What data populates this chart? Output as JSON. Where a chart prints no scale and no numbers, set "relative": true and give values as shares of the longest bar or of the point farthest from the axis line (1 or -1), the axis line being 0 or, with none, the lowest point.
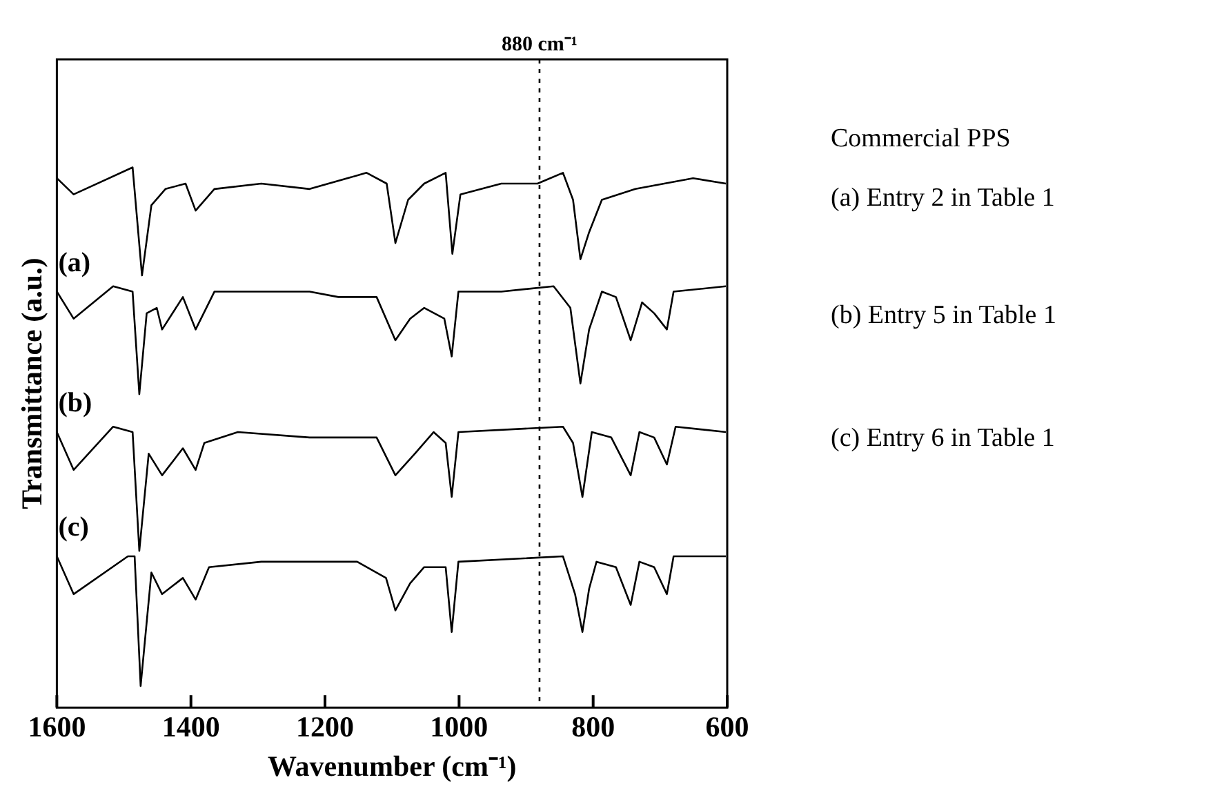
{
  "chart_data": {
    "type": "line",
    "relative": true,
    "xlabel": "Wavenumber (cm⁻¹)",
    "ylabel": "Transmittance (a.u.)",
    "xlim": [
      1600,
      600
    ],
    "xticks": [
      1600,
      1400,
      1200,
      1000,
      800,
      600
    ],
    "grid": false,
    "legend": false,
    "marker": "none",
    "line_style": "solid",
    "tick_labels": "x",
    "ref_lines": [
      {
        "axis": "x",
        "value": 880,
        "label": "880 cm⁻¹",
        "line_style": "dotted",
        "color": "#000000"
      }
    ],
    "annotations": [
      "Commercial PPS",
      "(a) Entry 2 in Table 1",
      "(b) Entry 5 in Table 1",
      "(c) Entry 6 in Table 1"
    ],
    "series": [
      {
        "color": "#000000",
        "x": [
          1600,
          1575,
          1487,
          1473,
          1459,
          1438,
          1408,
          1393,
          1365,
          1295,
          1223,
          1138,
          1108,
          1095,
          1076,
          1052,
          1020,
          1010,
          998,
          937,
          883,
          845,
          830,
          819,
          806,
          787,
          737,
          651,
          602
        ],
        "values": [
          0.98,
          0.95,
          1.0,
          0.8,
          0.93,
          0.96,
          0.97,
          0.92,
          0.96,
          0.97,
          0.96,
          0.99,
          0.97,
          0.86,
          0.94,
          0.97,
          0.99,
          0.84,
          0.95,
          0.97,
          0.97,
          0.99,
          0.94,
          0.83,
          0.88,
          0.94,
          0.96,
          0.98,
          0.97
        ]
      },
      {
        "name": "(a)",
        "color": "#000000",
        "x": [
          1600,
          1575,
          1516,
          1487,
          1477,
          1466,
          1451,
          1443,
          1412,
          1393,
          1365,
          1223,
          1180,
          1123,
          1095,
          1073,
          1052,
          1022,
          1011,
          1001,
          937,
          859,
          834,
          819,
          806,
          787,
          766,
          744,
          727,
          709,
          690,
          680,
          602
        ],
        "values": [
          0.77,
          0.72,
          0.78,
          0.77,
          0.58,
          0.73,
          0.74,
          0.7,
          0.76,
          0.7,
          0.77,
          0.77,
          0.76,
          0.76,
          0.68,
          0.72,
          0.74,
          0.72,
          0.65,
          0.77,
          0.77,
          0.78,
          0.74,
          0.6,
          0.7,
          0.77,
          0.76,
          0.68,
          0.75,
          0.73,
          0.7,
          0.77,
          0.78
        ]
      },
      {
        "name": "(b)",
        "color": "#000000",
        "x": [
          1600,
          1575,
          1516,
          1487,
          1477,
          1463,
          1443,
          1412,
          1393,
          1380,
          1330,
          1223,
          1123,
          1095,
          1066,
          1038,
          1020,
          1011,
          1001,
          845,
          830,
          816,
          802,
          773,
          744,
          731,
          709,
          690,
          677,
          602
        ],
        "values": [
          0.51,
          0.44,
          0.52,
          0.51,
          0.29,
          0.47,
          0.43,
          0.48,
          0.44,
          0.49,
          0.51,
          0.5,
          0.5,
          0.43,
          0.47,
          0.51,
          0.49,
          0.39,
          0.51,
          0.52,
          0.49,
          0.39,
          0.51,
          0.5,
          0.43,
          0.51,
          0.5,
          0.45,
          0.52,
          0.51
        ]
      },
      {
        "name": "(c)",
        "color": "#000000",
        "x": [
          1600,
          1575,
          1494,
          1484,
          1475,
          1459,
          1443,
          1412,
          1393,
          1373,
          1295,
          1152,
          1109,
          1095,
          1073,
          1052,
          1020,
          1011,
          1001,
          845,
          827,
          816,
          806,
          795,
          766,
          744,
          731,
          709,
          690,
          680,
          602
        ],
        "values": [
          0.28,
          0.21,
          0.28,
          0.28,
          0.04,
          0.25,
          0.21,
          0.24,
          0.2,
          0.26,
          0.27,
          0.27,
          0.24,
          0.18,
          0.23,
          0.26,
          0.26,
          0.14,
          0.27,
          0.28,
          0.21,
          0.14,
          0.22,
          0.27,
          0.26,
          0.19,
          0.27,
          0.26,
          0.21,
          0.28,
          0.28
        ]
      }
    ]
  }
}
